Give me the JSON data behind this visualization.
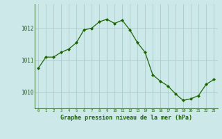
{
  "x": [
    0,
    1,
    2,
    3,
    4,
    5,
    6,
    7,
    8,
    9,
    10,
    11,
    12,
    13,
    14,
    15,
    16,
    17,
    18,
    19,
    20,
    21,
    22,
    23
  ],
  "y": [
    1010.75,
    1011.1,
    1011.1,
    1011.25,
    1011.35,
    1011.55,
    1011.95,
    1012.0,
    1012.2,
    1012.28,
    1012.15,
    1012.25,
    1011.95,
    1011.55,
    1011.25,
    1010.55,
    1010.35,
    1010.2,
    1009.95,
    1009.75,
    1009.8,
    1009.9,
    1010.25,
    1010.4
  ],
  "ylim": [
    1009.5,
    1012.75
  ],
  "yticks": [
    1010,
    1011,
    1012
  ],
  "xticks": [
    0,
    1,
    2,
    3,
    4,
    5,
    6,
    7,
    8,
    9,
    10,
    11,
    12,
    13,
    14,
    15,
    16,
    17,
    18,
    19,
    20,
    21,
    22,
    23
  ],
  "line_color": "#1a6600",
  "marker": "D",
  "marker_size": 2.0,
  "background_color": "#cce8e8",
  "grid_color": "#aacccc",
  "xlabel": "Graphe pression niveau de la mer (hPa)",
  "xlabel_color": "#1a6600",
  "tick_color": "#1a6600",
  "spine_color": "#336633"
}
